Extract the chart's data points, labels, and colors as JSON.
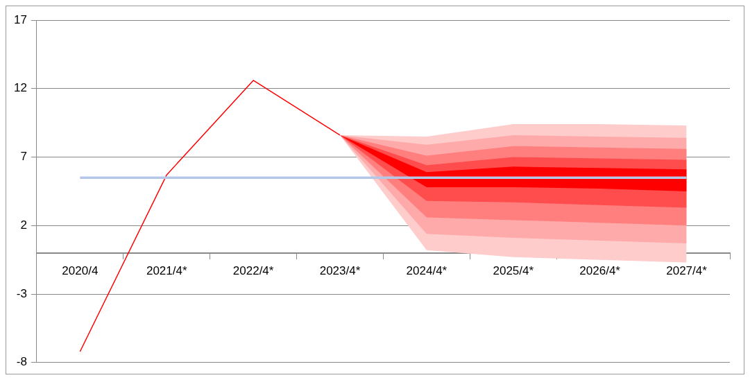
{
  "chart_data": {
    "type": "line",
    "categories": [
      "2020/4",
      "2021/4*",
      "2022/4*",
      "2023/4*",
      "2024/4*",
      "2025/4*",
      "2026/4*",
      "2027/4*"
    ],
    "ylim": [
      -8,
      17
    ],
    "yticks": [
      -8,
      -3,
      2,
      7,
      12,
      17
    ],
    "grid": "y",
    "legend": false,
    "series": [
      {
        "color": "#ffcccc",
        "values": [
          null,
          null,
          null,
          null,
          null,
          null,
          null,
          null
        ],
        "lower": [
          null,
          null,
          null,
          8.6,
          0.2,
          -0.3,
          -0.5,
          -0.7
        ],
        "upper": [
          null,
          null,
          null,
          8.6,
          8.5,
          9.4,
          9.4,
          9.3
        ]
      },
      {
        "color": "#ffaaaa",
        "values": [
          null,
          null,
          null,
          null,
          null,
          null,
          null,
          null
        ],
        "lower": [
          null,
          null,
          null,
          8.6,
          1.4,
          1.1,
          0.9,
          0.7
        ],
        "upper": [
          null,
          null,
          null,
          8.6,
          7.9,
          8.6,
          8.5,
          8.4
        ]
      },
      {
        "color": "#ff7f7f",
        "values": [
          null,
          null,
          null,
          null,
          null,
          null,
          null,
          null
        ],
        "lower": [
          null,
          null,
          null,
          8.6,
          2.6,
          2.4,
          2.2,
          2.0
        ],
        "upper": [
          null,
          null,
          null,
          8.6,
          7.1,
          7.8,
          7.7,
          7.6
        ]
      },
      {
        "color": "#ff4d4d",
        "values": [
          null,
          null,
          null,
          null,
          null,
          null,
          null,
          null
        ],
        "lower": [
          null,
          null,
          null,
          8.6,
          3.8,
          3.7,
          3.5,
          3.3
        ],
        "upper": [
          null,
          null,
          null,
          8.6,
          6.4,
          7.0,
          6.9,
          6.8
        ]
      },
      {
        "color": "#ff0000",
        "values": [
          -7.2,
          5.7,
          12.6,
          8.6,
          null,
          null,
          null,
          null
        ],
        "lower": [
          null,
          null,
          null,
          8.6,
          4.8,
          4.8,
          4.7,
          4.5
        ],
        "upper": [
          null,
          null,
          null,
          8.6,
          5.9,
          6.3,
          6.2,
          6.1
        ]
      },
      {
        "color": "#b4c7e7",
        "values": [
          5.5,
          5.5,
          5.5,
          5.5,
          5.5,
          5.5,
          5.5,
          5.5
        ]
      }
    ]
  }
}
